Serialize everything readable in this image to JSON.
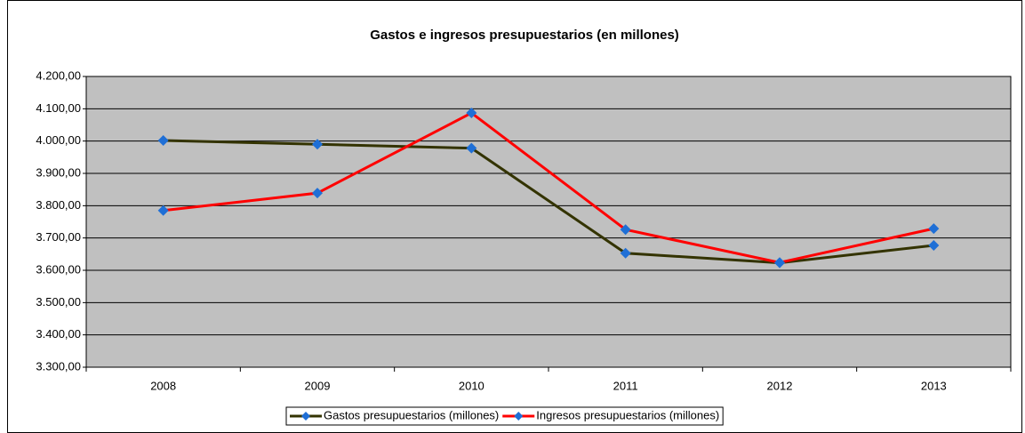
{
  "chart_data": {
    "type": "line",
    "title": "Gastos e ingresos presupuestarios (en millones)",
    "categories": [
      "2008",
      "2009",
      "2010",
      "2011",
      "2012",
      "2013"
    ],
    "series": [
      {
        "name": "Gastos presupuestarios (millones)",
        "color": "#333300",
        "values": [
          4002,
          3990,
          3978,
          3653,
          3623,
          3677
        ]
      },
      {
        "name": "Ingresos presupuestarios (millones)",
        "color": "#ff0000",
        "values": [
          3785,
          3839,
          4087,
          3726,
          3624,
          3729
        ]
      }
    ],
    "marker_color": "#1f6fd6",
    "ylim": [
      3300,
      4200
    ],
    "yticks": [
      {
        "value": 3300,
        "label": "3.300,00"
      },
      {
        "value": 3400,
        "label": "3.400,00"
      },
      {
        "value": 3500,
        "label": "3.500,00"
      },
      {
        "value": 3600,
        "label": "3.600,00"
      },
      {
        "value": 3700,
        "label": "3.700,00"
      },
      {
        "value": 3800,
        "label": "3.800,00"
      },
      {
        "value": 3900,
        "label": "3.900,00"
      },
      {
        "value": 4000,
        "label": "4.000,00"
      },
      {
        "value": 4100,
        "label": "4.100,00"
      },
      {
        "value": 4200,
        "label": "4.200,00"
      }
    ],
    "grid": true,
    "legend": "bottom"
  }
}
